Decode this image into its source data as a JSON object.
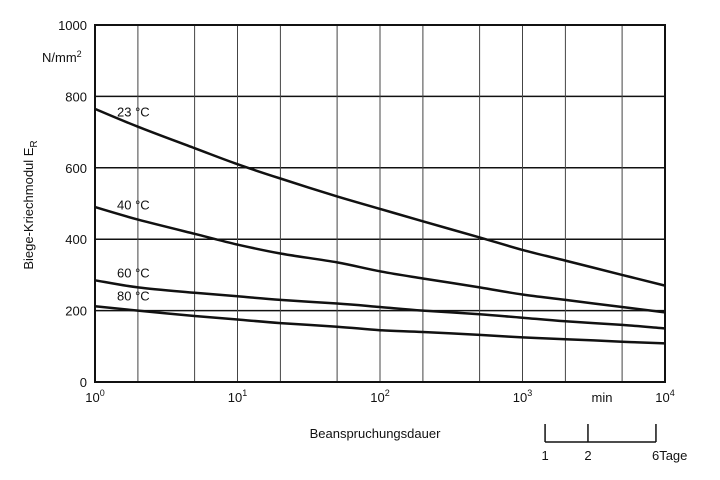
{
  "chart_data": {
    "type": "line",
    "title": "",
    "xlabel": "Beanspruchungsdauer",
    "ylabel": "Biege-Kriechmodul E",
    "ylabel_subscript": "R",
    "yunit": "N/mm",
    "yunit_superscript": "2",
    "xscale": "log",
    "xlim": [
      1,
      10000
    ],
    "ylim": [
      0,
      1000
    ],
    "grid": true,
    "x_ticks": [
      {
        "value": 1,
        "base": "10",
        "exp": "0"
      },
      {
        "value": 10,
        "base": "10",
        "exp": "1"
      },
      {
        "value": 100,
        "base": "10",
        "exp": "2"
      },
      {
        "value": 1000,
        "base": "10",
        "exp": "3"
      },
      {
        "value": 10000,
        "base": "10",
        "exp": "4"
      }
    ],
    "x_unit_label": "min",
    "y_ticks": [
      {
        "value": 0,
        "label": "0"
      },
      {
        "value": 200,
        "label": "200"
      },
      {
        "value": 400,
        "label": "400"
      },
      {
        "value": 600,
        "label": "600"
      },
      {
        "value": 800,
        "label": "800"
      },
      {
        "value": 1000,
        "label": "1000"
      }
    ],
    "series": [
      {
        "name": "23 °C",
        "x": [
          1,
          2,
          5,
          10,
          20,
          50,
          100,
          200,
          500,
          1000,
          2000,
          5000,
          10000
        ],
        "values": [
          765,
          715,
          655,
          610,
          570,
          520,
          485,
          450,
          405,
          370,
          340,
          300,
          270
        ]
      },
      {
        "name": "40 °C",
        "x": [
          1,
          2,
          5,
          10,
          20,
          50,
          100,
          200,
          500,
          1000,
          2000,
          5000,
          10000
        ],
        "values": [
          490,
          455,
          415,
          385,
          360,
          335,
          310,
          290,
          265,
          245,
          230,
          210,
          195
        ]
      },
      {
        "name": "60 °C",
        "x": [
          1,
          2,
          5,
          10,
          20,
          50,
          100,
          200,
          500,
          1000,
          2000,
          5000,
          10000
        ],
        "values": [
          285,
          265,
          250,
          240,
          230,
          220,
          210,
          200,
          190,
          180,
          170,
          160,
          150
        ]
      },
      {
        "name": "80 °C",
        "x": [
          1,
          2,
          5,
          10,
          20,
          50,
          100,
          200,
          500,
          1000,
          2000,
          5000,
          10000
        ],
        "values": [
          212,
          200,
          185,
          175,
          165,
          155,
          145,
          140,
          132,
          125,
          120,
          113,
          108
        ]
      }
    ],
    "day_scale": {
      "labels": [
        {
          "value": 1440,
          "label": "1"
        },
        {
          "value": 2880,
          "label": "2"
        },
        {
          "value": 8640,
          "label": "6"
        }
      ],
      "unit": "Tage"
    }
  }
}
